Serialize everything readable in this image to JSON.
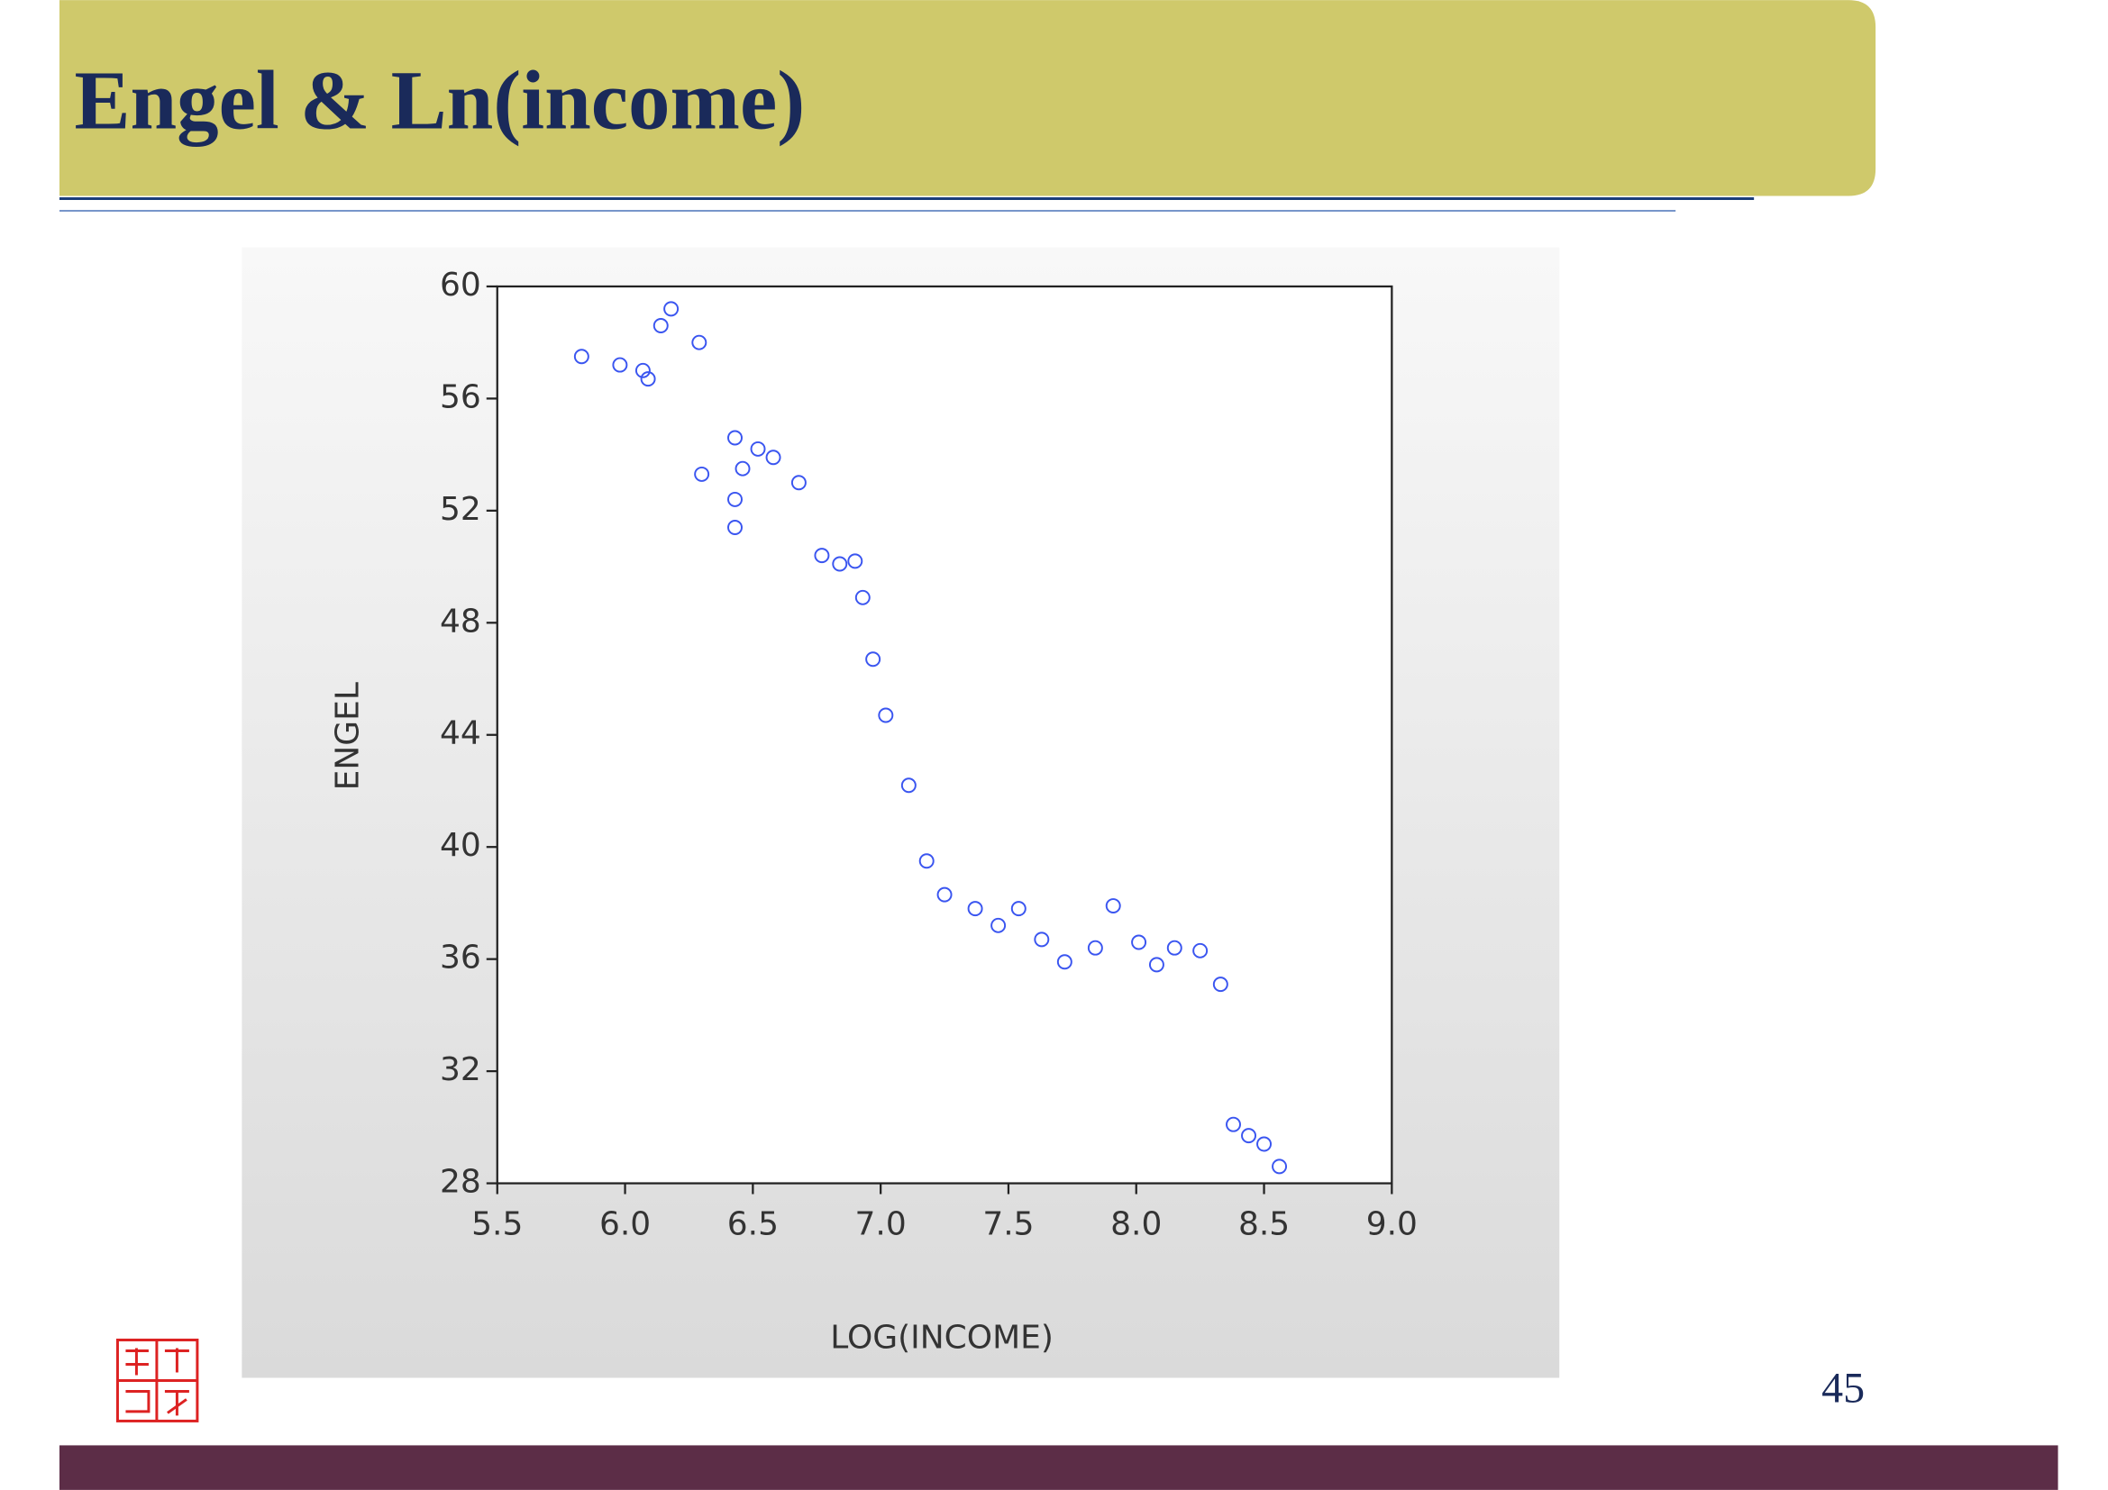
{
  "chart_data": {
    "type": "scatter",
    "title": "Engel & Ln(income)",
    "xlabel": "LOG(INCOME)",
    "ylabel": "ENGEL",
    "x": [
      5.83,
      5.98,
      6.07,
      6.09,
      6.14,
      6.18,
      6.29,
      6.3,
      6.43,
      6.46,
      6.52,
      6.58,
      6.43,
      6.43,
      6.68,
      6.77,
      6.84,
      6.9,
      6.93,
      6.97,
      7.02,
      7.11,
      7.18,
      7.25,
      7.37,
      7.46,
      7.54,
      7.63,
      7.72,
      7.84,
      7.91,
      8.01,
      8.08,
      8.15,
      8.25,
      8.33,
      8.38,
      8.44,
      8.5,
      8.56
    ],
    "values": [
      57.5,
      57.2,
      57.0,
      56.7,
      58.6,
      59.2,
      58.0,
      53.3,
      54.6,
      53.5,
      54.2,
      53.9,
      52.4,
      51.4,
      53.0,
      50.4,
      50.1,
      50.2,
      48.9,
      46.7,
      44.7,
      42.2,
      39.5,
      38.3,
      37.8,
      37.2,
      37.8,
      36.7,
      35.9,
      36.4,
      37.9,
      36.6,
      35.8,
      36.4,
      36.3,
      35.1,
      30.1,
      29.7,
      29.4,
      28.6
    ],
    "color": "#3a55f0",
    "xlim": [
      5.5,
      9.0
    ],
    "xticks": [
      5.5,
      {
        "value": 6,
        "label": "6.0"
      },
      6.5,
      {
        "value": 7,
        "label": "7.0"
      },
      7.5,
      {
        "value": 8,
        "label": "8.0"
      },
      8.5,
      {
        "value": 9,
        "label": "9.0"
      }
    ],
    "ylim": [
      28,
      60
    ],
    "yticks": [
      28,
      32,
      36,
      40,
      44,
      48,
      52,
      56,
      60
    ],
    "grid": false
  },
  "page_number": "45"
}
